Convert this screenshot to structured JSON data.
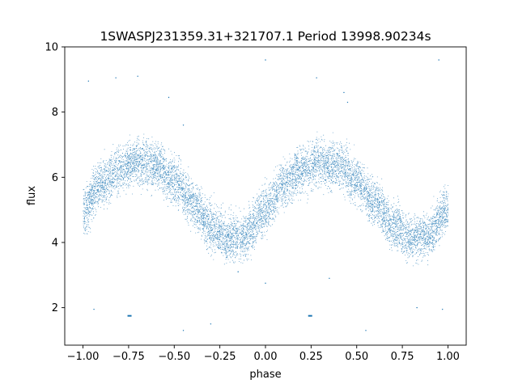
{
  "chart_data": {
    "type": "scatter",
    "title": "1SWASPJ231359.31+321707.1 Period 13998.90234s",
    "xlabel": "phase",
    "ylabel": "flux",
    "xlim": [
      -1.1,
      1.1
    ],
    "ylim": [
      0.85,
      10.0
    ],
    "xticks": [
      -1.0,
      -0.75,
      -0.5,
      -0.25,
      0.0,
      0.25,
      0.5,
      0.75,
      1.0
    ],
    "xtick_labels": [
      "−1.00",
      "−0.75",
      "−0.50",
      "−0.25",
      "0.00",
      "0.25",
      "0.50",
      "0.75",
      "1.00"
    ],
    "yticks": [
      2,
      4,
      6,
      8,
      10
    ],
    "ytick_labels": [
      "2",
      "4",
      "6",
      "8",
      "10"
    ],
    "grid": false,
    "point_color": "#1f77b4",
    "curve_model": {
      "description_points_phase_flux": [
        [
          -1.0,
          5.0
        ],
        [
          -0.9,
          5.8
        ],
        [
          -0.8,
          6.25
        ],
        [
          -0.7,
          6.45
        ],
        [
          -0.6,
          6.35
        ],
        [
          -0.5,
          5.9
        ],
        [
          -0.4,
          5.2
        ],
        [
          -0.3,
          4.5
        ],
        [
          -0.2,
          4.15
        ],
        [
          -0.12,
          4.2
        ],
        [
          0.0,
          5.0
        ],
        [
          0.1,
          5.8
        ],
        [
          0.2,
          6.25
        ],
        [
          0.3,
          6.45
        ],
        [
          0.4,
          6.35
        ],
        [
          0.5,
          5.9
        ],
        [
          0.6,
          5.2
        ],
        [
          0.7,
          4.5
        ],
        [
          0.8,
          4.15
        ],
        [
          0.88,
          4.2
        ],
        [
          1.0,
          5.0
        ]
      ],
      "scatter_width": 0.35
    },
    "outliers": [
      [
        -0.97,
        8.95
      ],
      [
        -0.82,
        9.05
      ],
      [
        -0.7,
        9.1
      ],
      [
        -0.53,
        8.45
      ],
      [
        -0.45,
        7.6
      ],
      [
        0.0,
        9.6
      ],
      [
        0.28,
        9.05
      ],
      [
        0.43,
        8.6
      ],
      [
        0.45,
        8.3
      ],
      [
        0.95,
        9.6
      ],
      [
        -0.94,
        1.95
      ],
      [
        -0.45,
        1.3
      ],
      [
        -0.3,
        1.5
      ],
      [
        0.0,
        2.75
      ],
      [
        0.55,
        1.3
      ],
      [
        0.83,
        2.0
      ],
      [
        0.97,
        1.95
      ],
      [
        -0.15,
        3.1
      ],
      [
        0.35,
        2.9
      ]
    ],
    "clusters": [
      [
        -0.745,
        1.75
      ],
      [
        0.245,
        1.75
      ]
    ]
  }
}
